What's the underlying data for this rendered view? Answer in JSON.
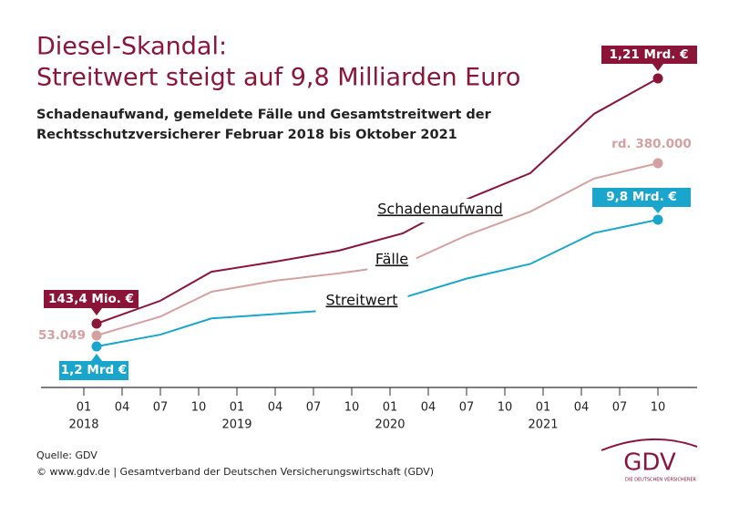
{
  "chart_data": {
    "type": "line",
    "title": [
      "Diesel-Skandal:",
      "Streitwert steigt auf 9,8 Milliarden Euro"
    ],
    "subtitle": [
      "Schadenaufwand, gemeldete Fälle und Gesamtstreitwert der",
      "Rechtsschutzversicherer Februar 2018 bis Oktober 2021"
    ],
    "x": [
      "2018-02",
      "2018-07",
      "2018-11",
      "2019-04",
      "2019-09",
      "2020-02",
      "2020-07",
      "2020-12",
      "2021-05",
      "2021-10"
    ],
    "series": [
      {
        "name": "Schadenaufwand",
        "color": "#8b1538",
        "values": [
          143.4,
          243,
          369,
          413,
          461,
          536,
          684,
          798,
          1056,
          1210
        ],
        "value_labels": [
          "143,4 Mio. €",
          null,
          null,
          null,
          null,
          null,
          null,
          null,
          null,
          "1,21 Mrd. €"
        ]
      },
      {
        "name": "Fälle",
        "color": "#d4a0a0",
        "values": [
          53049,
          89000,
          136000,
          157000,
          171000,
          188000,
          243000,
          288000,
          351000,
          380000
        ],
        "value_labels": [
          "53.049",
          null,
          null,
          null,
          null,
          null,
          null,
          null,
          null,
          "rd. 380.000"
        ]
      },
      {
        "name": "Streitwert",
        "color": "#1aa6cc",
        "values": [
          1.2,
          2.0,
          3.1,
          3.4,
          3.7,
          4.5,
          5.8,
          6.8,
          8.9,
          9.8
        ],
        "value_labels": [
          "1,2 Mrd €",
          null,
          null,
          null,
          null,
          null,
          null,
          null,
          null,
          "9,8 Mrd. €"
        ]
      }
    ],
    "xlim": [
      "2018-01",
      "2021-10"
    ],
    "xticks": [
      {
        "value": "2018-01",
        "label": "01"
      },
      {
        "value": "2018-04",
        "label": "04"
      },
      {
        "value": "2018-07",
        "label": "07"
      },
      {
        "value": "2018-10",
        "label": "10"
      },
      {
        "value": "2019-01",
        "label": "01"
      },
      {
        "value": "2019-04",
        "label": "04"
      },
      {
        "value": "2019-07",
        "label": "07"
      },
      {
        "value": "2019-10",
        "label": "10"
      },
      {
        "value": "2020-01",
        "label": "01"
      },
      {
        "value": "2020-04",
        "label": "04"
      },
      {
        "value": "2020-07",
        "label": "07"
      },
      {
        "value": "2020-10",
        "label": "10"
      },
      {
        "value": "2021-01",
        "label": "01"
      },
      {
        "value": "2021-04",
        "label": "04"
      },
      {
        "value": "2021-07",
        "label": "07"
      },
      {
        "value": "2021-10",
        "label": "10"
      }
    ],
    "year_labels": [
      {
        "value": "2018-01",
        "label": "2018"
      },
      {
        "value": "2019-01",
        "label": "2019"
      },
      {
        "value": "2020-01",
        "label": "2020"
      },
      {
        "value": "2021-01",
        "label": "2021"
      }
    ],
    "source": [
      "Quelle: GDV",
      "© www.gdv.de | Gesamtverband der Deutschen Versicherungswirtschaft (GDV)"
    ],
    "logo": {
      "text": "GDV",
      "tagline": "DIE DEUTSCHEN VERSICHERER"
    }
  }
}
